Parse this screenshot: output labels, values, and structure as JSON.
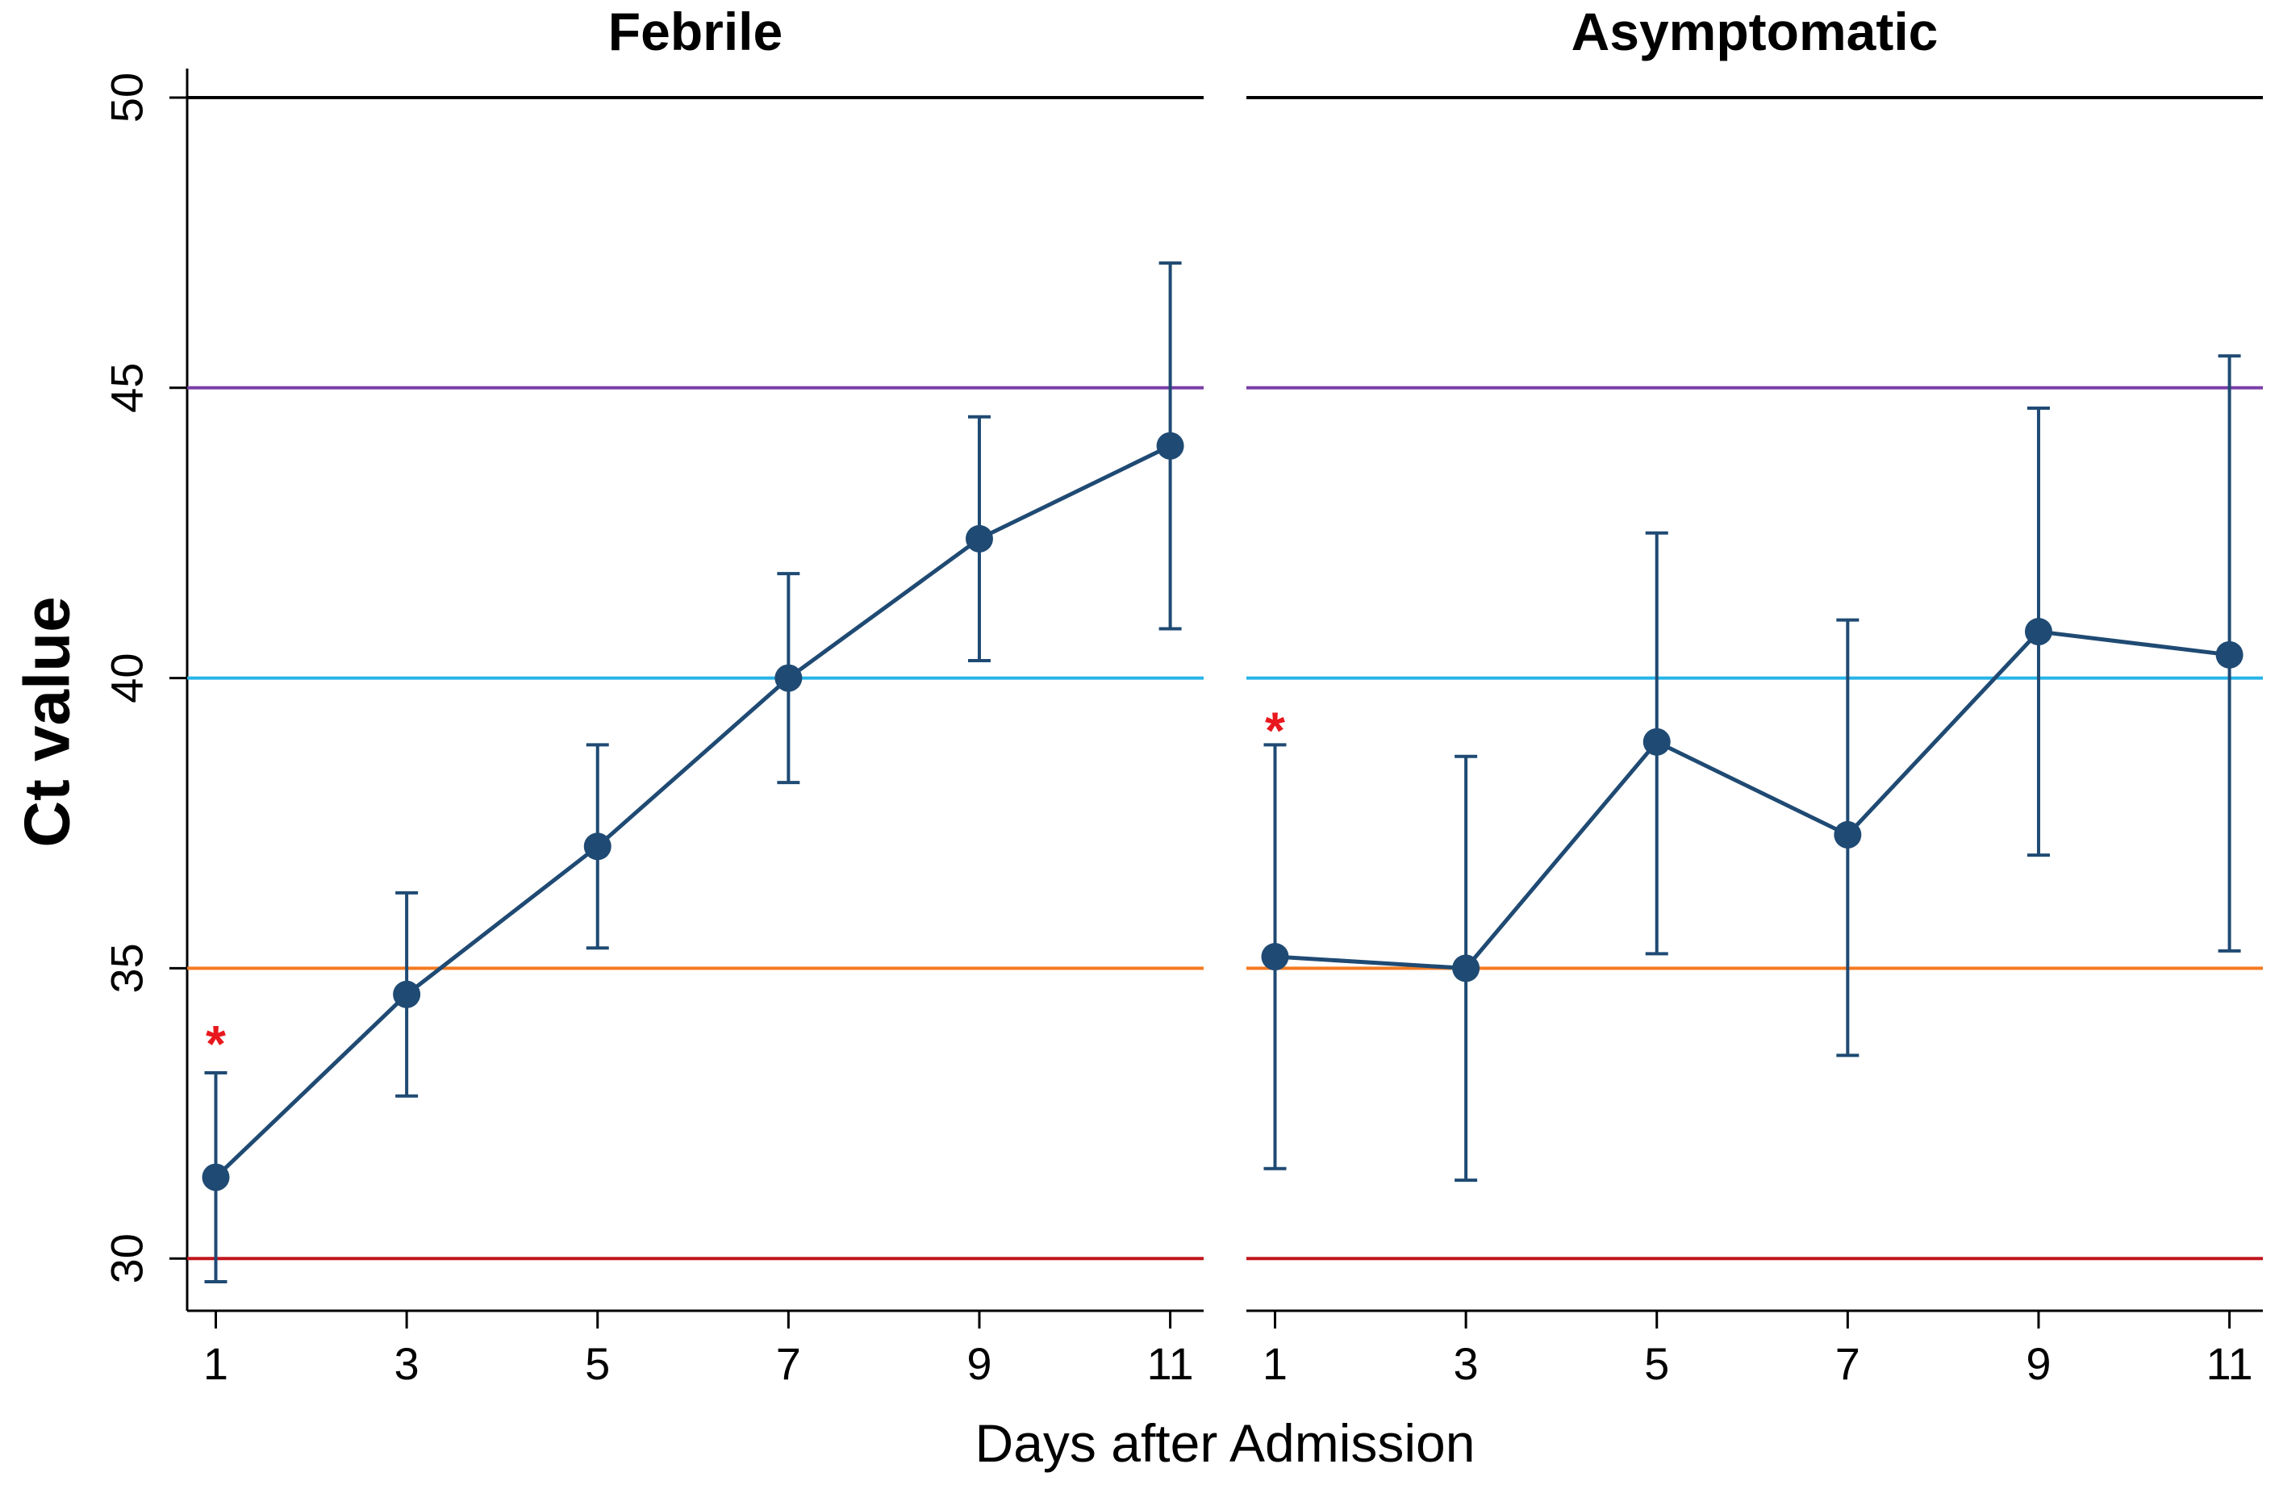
{
  "chart_data": {
    "type": "line",
    "ylabel": "Ct value",
    "xlabel": "Days after Admission",
    "ylim": [
      29.1,
      50.5
    ],
    "yticks": [
      30,
      35,
      40,
      45,
      50
    ],
    "xlim": [
      0.7,
      11.35
    ],
    "xticks": [
      1,
      3,
      5,
      7,
      9,
      11
    ],
    "reference_lines": [
      {
        "y": 50,
        "color": "#000000"
      },
      {
        "y": 45,
        "color": "#7a3fa8"
      },
      {
        "y": 40,
        "color": "#27b4e8"
      },
      {
        "y": 35,
        "color": "#f47a20"
      },
      {
        "y": 30,
        "color": "#c0161c"
      }
    ],
    "series_color": "#1f4a73",
    "significance_color": "#e8181e",
    "panels": [
      {
        "title": "Febrile",
        "x": [
          1,
          3,
          5,
          7,
          9,
          11
        ],
        "mean": [
          31.4,
          34.55,
          37.1,
          40.0,
          42.4,
          44.0
        ],
        "lower": [
          29.6,
          32.8,
          35.35,
          38.2,
          40.3,
          40.85
        ],
        "upper": [
          33.2,
          36.3,
          38.85,
          41.8,
          44.5,
          47.15
        ],
        "markers": [
          {
            "x": 1,
            "y": 33.7,
            "label": "*"
          }
        ]
      },
      {
        "title": "Asymptomatic",
        "x": [
          1,
          3,
          5,
          7,
          9,
          11
        ],
        "mean": [
          35.2,
          35.0,
          38.9,
          37.3,
          40.8,
          40.4
        ],
        "lower": [
          31.55,
          31.35,
          35.25,
          33.5,
          36.95,
          35.3
        ],
        "upper": [
          38.85,
          38.65,
          42.5,
          41.0,
          44.65,
          45.55
        ],
        "markers": [
          {
            "x": 1,
            "y": 39.1,
            "label": "*"
          }
        ]
      }
    ]
  }
}
